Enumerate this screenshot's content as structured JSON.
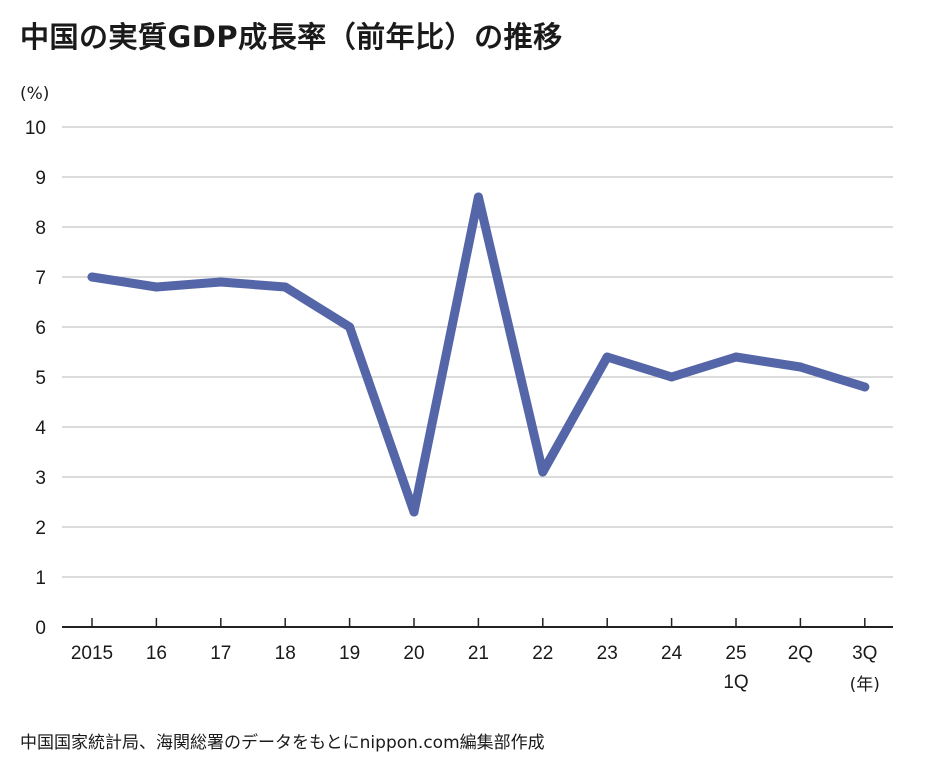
{
  "title": "中国の実質GDP成長率（前年比）の推移",
  "source": "中国国家統計局、海関総署のデータをもとにnippon.com編集部作成",
  "chart_data": {
    "type": "line",
    "title": "中国の実質GDP成長率（前年比）の推移",
    "ylabel": "(%)",
    "xunit": "(年)",
    "ylim": [
      0,
      10
    ],
    "yticks": [
      0,
      1,
      2,
      3,
      4,
      5,
      6,
      7,
      8,
      9,
      10
    ],
    "grid": true,
    "categories": [
      {
        "line1": "2015",
        "line2": ""
      },
      {
        "line1": "16",
        "line2": ""
      },
      {
        "line1": "17",
        "line2": ""
      },
      {
        "line1": "18",
        "line2": ""
      },
      {
        "line1": "19",
        "line2": ""
      },
      {
        "line1": "20",
        "line2": ""
      },
      {
        "line1": "21",
        "line2": ""
      },
      {
        "line1": "22",
        "line2": ""
      },
      {
        "line1": "23",
        "line2": ""
      },
      {
        "line1": "24",
        "line2": ""
      },
      {
        "line1": "25",
        "line2": "1Q"
      },
      {
        "line1": "2Q",
        "line2": ""
      },
      {
        "line1": "3Q",
        "line2": ""
      }
    ],
    "series": [
      {
        "values": [
          7.0,
          6.8,
          6.9,
          6.8,
          6.0,
          2.3,
          8.6,
          3.1,
          5.4,
          5.0,
          5.4,
          5.2,
          4.8
        ],
        "color": "#5566a8"
      }
    ]
  }
}
